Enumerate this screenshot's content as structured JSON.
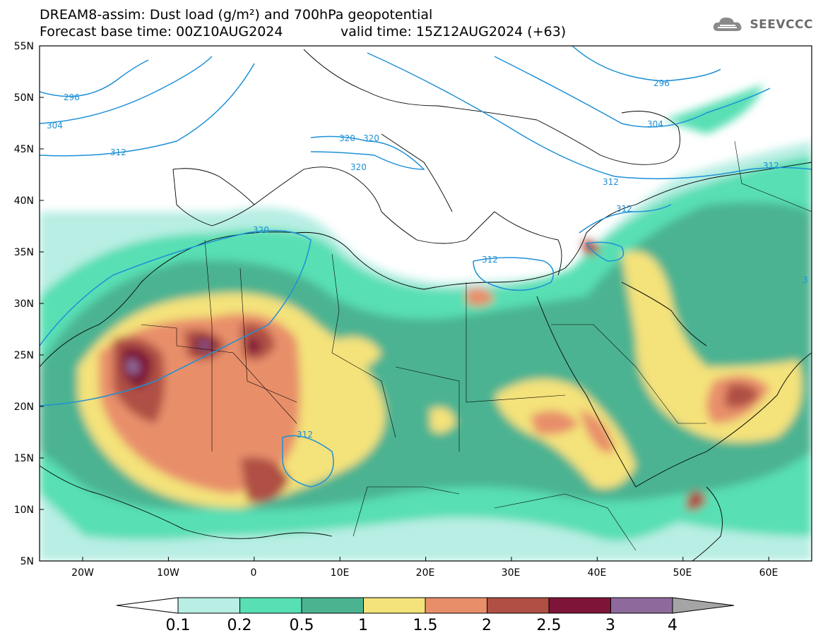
{
  "header": {
    "title_line1": "DREAM8-assim: Dust load (g/m²) and 700hPa geopotential",
    "base_time": "Forecast base time: 00Z10AUG2024",
    "valid_time": "valid time: 15Z12AUG2024 (+63)"
  },
  "logo": {
    "text": "SEEVCCC",
    "icon": "cloud-icon"
  },
  "map": {
    "lat_labels": [
      "55N",
      "50N",
      "45N",
      "40N",
      "35N",
      "30N",
      "25N",
      "20N",
      "15N",
      "10N",
      "5N"
    ],
    "lon_labels": [
      "20W",
      "10W",
      "0",
      "10E",
      "20E",
      "30E",
      "40E",
      "50E",
      "60E"
    ],
    "contour_labels": [
      "296",
      "304",
      "312",
      "320",
      "320",
      "320",
      "312",
      "312",
      "312",
      "312",
      "296",
      "304",
      "312",
      "312",
      "3"
    ]
  },
  "legend": {
    "ticks": [
      "0.1",
      "0.2",
      "0.5",
      "1",
      "1.5",
      "2",
      "2.5",
      "3",
      "4"
    ],
    "colors": [
      "#b8eee4",
      "#58dfb4",
      "#4cb391",
      "#f4e27a",
      "#e88f6a",
      "#b04f44",
      "#7e1438",
      "#8e6a9c",
      "#a5a5a5"
    ]
  }
}
